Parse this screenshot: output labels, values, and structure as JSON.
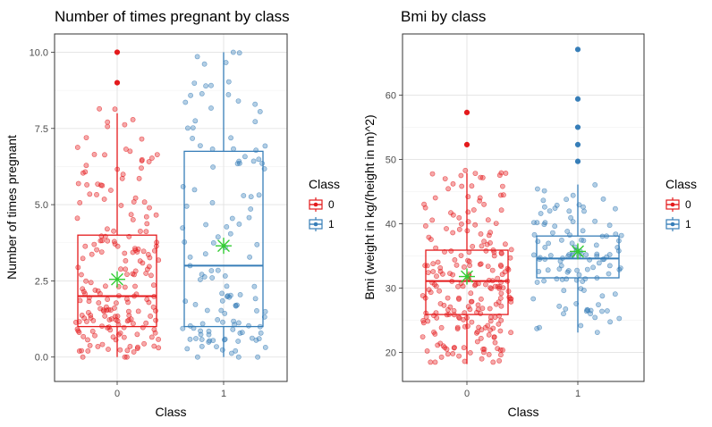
{
  "chart_data": [
    {
      "type": "boxplot",
      "title": "Number of times pregnant by class",
      "xlabel": "Class",
      "ylabel": "Number of times pregnant",
      "categories": [
        "0",
        "1"
      ],
      "yticks": [
        "0.0",
        "2.5",
        "5.0",
        "7.5",
        "10.0"
      ],
      "ylim": [
        -0.8,
        10.6
      ],
      "grid": true,
      "legend": {
        "title": "Class",
        "entries": [
          "0",
          "1"
        ],
        "position": "right"
      },
      "colors": {
        "0": "#e41a1c",
        "1": "#377eb8",
        "mean": "#33cc33"
      },
      "boxes": [
        {
          "name": "0",
          "min": 0,
          "q1": 1,
          "median": 2,
          "q3": 4,
          "max": 8,
          "mean": 2.55,
          "outliers": [
            9,
            10
          ]
        },
        {
          "name": "1",
          "min": 0,
          "q1": 1,
          "median": 3,
          "q3": 6.75,
          "max": 10,
          "mean": 3.65,
          "outliers": []
        }
      ],
      "jitter": {
        "n": [
          200,
          130
        ],
        "range": [
          [
            0,
            10
          ],
          [
            0,
            10
          ]
        ]
      }
    },
    {
      "type": "boxplot",
      "title": "Bmi by class",
      "xlabel": "Class",
      "ylabel": "Bmi (weight in kg/(height in m)^2)",
      "categories": [
        "0",
        "1"
      ],
      "yticks": [
        "20",
        "30",
        "40",
        "50",
        "60"
      ],
      "ylim": [
        15.5,
        69.5
      ],
      "grid": true,
      "legend": {
        "title": "Class",
        "entries": [
          "0",
          "1"
        ],
        "position": "right"
      },
      "colors": {
        "0": "#e41a1c",
        "1": "#377eb8",
        "mean": "#33cc33"
      },
      "boxes": [
        {
          "name": "0",
          "min": 18.2,
          "q1": 25.9,
          "median": 31.1,
          "q3": 35.9,
          "max": 47.9,
          "mean": 31.8,
          "outliers": [
            52.3,
            57.3
          ]
        },
        {
          "name": "1",
          "min": 23.1,
          "q1": 31.6,
          "median": 34.6,
          "q3": 38.1,
          "max": 46.1,
          "mean": 35.7,
          "outliers": [
            49.7,
            52.3,
            55.0,
            59.4,
            67.1
          ]
        }
      ],
      "jitter": {
        "n": [
          230,
          120
        ],
        "range": [
          [
            18.5,
            57.5
          ],
          [
            22.5,
            67
          ]
        ]
      }
    }
  ]
}
